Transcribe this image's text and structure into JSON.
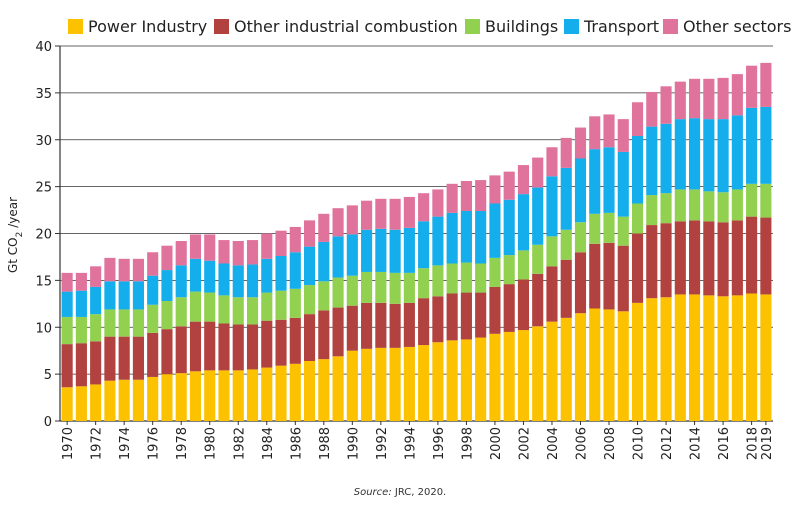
{
  "chart_data": {
    "type": "bar",
    "stacked": true,
    "title": "",
    "xlabel": "",
    "ylabel": {
      "prefix": "Gt CO",
      "subscript": "2",
      "suffix": " /year"
    },
    "ylim": [
      0,
      40
    ],
    "yticks": [
      0,
      5,
      10,
      15,
      20,
      25,
      30,
      35,
      40
    ],
    "grid": true,
    "legend_position": "top",
    "categories": [
      "1970",
      "1971",
      "1972",
      "1973",
      "1974",
      "1975",
      "1976",
      "1977",
      "1978",
      "1979",
      "1980",
      "1981",
      "1982",
      "1983",
      "1984",
      "1985",
      "1986",
      "1987",
      "1988",
      "1989",
      "1990",
      "1991",
      "1992",
      "1993",
      "1994",
      "1995",
      "1996",
      "1997",
      "1998",
      "1999",
      "2000",
      "2001",
      "2002",
      "2003",
      "2004",
      "2005",
      "2006",
      "2007",
      "2008",
      "2009",
      "2010",
      "2011",
      "2012",
      "2013",
      "2014",
      "2015",
      "2016",
      "2017",
      "2018",
      "2019"
    ],
    "xtick_labels": [
      "1970",
      "1972",
      "1974",
      "1976",
      "1978",
      "1980",
      "1982",
      "1984",
      "1986",
      "1988",
      "1990",
      "1992",
      "1994",
      "1996",
      "1998",
      "2000",
      "2002",
      "2004",
      "2006",
      "2008",
      "2010",
      "2012",
      "2014",
      "2016",
      "2018",
      "2019"
    ],
    "series": [
      {
        "name": "Power Industry",
        "color": "#fcc200",
        "values": [
          3.6,
          3.7,
          3.9,
          4.3,
          4.4,
          4.4,
          4.7,
          5.0,
          5.1,
          5.3,
          5.4,
          5.4,
          5.4,
          5.5,
          5.7,
          5.9,
          6.1,
          6.4,
          6.6,
          6.9,
          7.5,
          7.7,
          7.8,
          7.8,
          7.9,
          8.1,
          8.4,
          8.6,
          8.7,
          8.9,
          9.3,
          9.5,
          9.7,
          10.1,
          10.6,
          11.0,
          11.5,
          12.0,
          11.9,
          11.7,
          12.6,
          13.1,
          13.2,
          13.5,
          13.5,
          13.4,
          13.3,
          13.4,
          13.6,
          13.5
        ]
      },
      {
        "name": "Other industrial combustion",
        "color": "#b2423f",
        "values": [
          4.6,
          4.6,
          4.6,
          4.7,
          4.6,
          4.6,
          4.7,
          4.8,
          5.0,
          5.3,
          5.2,
          5.0,
          4.9,
          4.8,
          5.0,
          4.9,
          4.9,
          5.0,
          5.2,
          5.2,
          4.8,
          4.9,
          4.8,
          4.7,
          4.7,
          5.0,
          4.9,
          5.0,
          5.0,
          4.8,
          5.0,
          5.1,
          5.4,
          5.6,
          5.9,
          6.2,
          6.5,
          6.9,
          7.1,
          7.0,
          7.4,
          7.8,
          7.9,
          7.8,
          7.9,
          7.9,
          7.9,
          8.0,
          8.2,
          8.2
        ]
      },
      {
        "name": "Buildings",
        "color": "#92d050",
        "values": [
          2.9,
          2.8,
          2.9,
          2.9,
          2.9,
          2.9,
          3.0,
          3.0,
          3.1,
          3.2,
          3.1,
          3.0,
          2.9,
          2.9,
          3.0,
          3.1,
          3.1,
          3.1,
          3.1,
          3.2,
          3.2,
          3.3,
          3.3,
          3.3,
          3.2,
          3.2,
          3.3,
          3.2,
          3.2,
          3.1,
          3.1,
          3.1,
          3.1,
          3.1,
          3.2,
          3.2,
          3.2,
          3.2,
          3.2,
          3.1,
          3.2,
          3.2,
          3.2,
          3.4,
          3.3,
          3.2,
          3.2,
          3.3,
          3.5,
          3.6
        ]
      },
      {
        "name": "Transport",
        "color": "#13aeeb",
        "values": [
          2.7,
          2.8,
          2.9,
          3.0,
          3.0,
          3.0,
          3.1,
          3.3,
          3.4,
          3.5,
          3.4,
          3.4,
          3.4,
          3.5,
          3.6,
          3.7,
          3.9,
          4.1,
          4.2,
          4.4,
          4.4,
          4.5,
          4.6,
          4.6,
          4.8,
          5.0,
          5.2,
          5.4,
          5.5,
          5.6,
          5.8,
          5.9,
          6.0,
          6.1,
          6.4,
          6.6,
          6.8,
          6.9,
          7.0,
          6.9,
          7.2,
          7.3,
          7.4,
          7.5,
          7.6,
          7.7,
          7.8,
          7.9,
          8.1,
          8.2
        ]
      },
      {
        "name": "Other sectors",
        "color": "#e0739c",
        "values": [
          2.0,
          1.9,
          2.2,
          2.5,
          2.4,
          2.4,
          2.5,
          2.6,
          2.6,
          2.6,
          2.8,
          2.5,
          2.6,
          2.6,
          2.7,
          2.7,
          2.7,
          2.8,
          3.0,
          3.0,
          3.1,
          3.1,
          3.2,
          3.3,
          3.3,
          3.0,
          2.9,
          3.1,
          3.2,
          3.3,
          3.0,
          3.0,
          3.1,
          3.2,
          3.1,
          3.2,
          3.3,
          3.5,
          3.5,
          3.5,
          3.6,
          3.7,
          4.0,
          4.0,
          4.2,
          4.3,
          4.4,
          4.4,
          4.5,
          4.7
        ]
      }
    ]
  },
  "source": {
    "label": "Source:",
    "text": " JRC, 2020."
  }
}
